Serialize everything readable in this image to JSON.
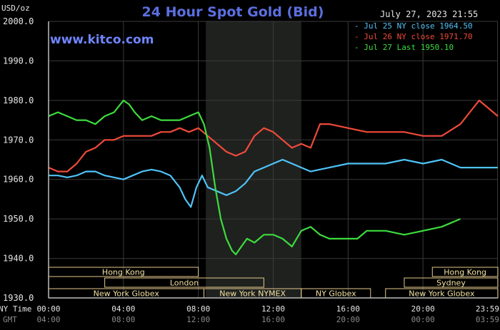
{
  "chart_data": {
    "type": "line",
    "title": "24 Hour Spot Gold (Bid)",
    "brand": "www.kitco.com",
    "timestamp": "July 27, 2023 21:55",
    "ylabel": "USD/oz",
    "ylim": [
      1930,
      2000
    ],
    "yticks": [
      "2000.0",
      "1990.0",
      "1980.0",
      "1970.0",
      "1960.0",
      "1950.0",
      "1940.0",
      "1930.0"
    ],
    "xlim": [
      0,
      24
    ],
    "xticks": [
      0,
      4,
      8,
      12,
      16,
      20,
      23.983
    ],
    "x_row1_label": "NY Time",
    "x_row1": [
      "00:00",
      "04:00",
      "08:00",
      "12:00",
      "16:00",
      "20:00",
      "23:59"
    ],
    "x_row2_label": "GMT",
    "x_row2": [
      "04:00",
      "08:00",
      "12:00",
      "16:00",
      "20:00",
      "00:00",
      "03:59"
    ],
    "shaded_range": [
      8.4,
      13.5
    ],
    "grid": true,
    "legend_position": "top-right",
    "series": [
      {
        "name": "Jul 25 NY close 1964.50",
        "color": "#4fc3f7",
        "x": [
          0,
          0.5,
          1,
          1.5,
          2,
          2.5,
          3,
          3.5,
          4,
          4.5,
          5,
          5.5,
          6,
          6.5,
          7,
          7.3,
          7.6,
          7.9,
          8.2,
          8.5,
          9,
          9.5,
          10,
          10.5,
          11,
          11.5,
          12,
          12.5,
          13,
          13.5,
          14,
          15,
          16,
          17,
          18,
          19,
          20,
          21,
          22,
          23,
          24
        ],
        "values": [
          1961,
          1961,
          1960.5,
          1961,
          1962,
          1962,
          1961,
          1960.5,
          1960,
          1961,
          1962,
          1962.5,
          1962,
          1961,
          1958,
          1955,
          1953,
          1958,
          1961,
          1958,
          1957,
          1956,
          1957,
          1959,
          1962,
          1963,
          1964,
          1965,
          1964,
          1963,
          1962,
          1963,
          1964,
          1964,
          1964,
          1965,
          1964,
          1965,
          1963,
          1963,
          1963
        ]
      },
      {
        "name": "Jul 26 NY close 1971.70",
        "color": "#f04a3a",
        "x": [
          0,
          0.5,
          1,
          1.5,
          2,
          2.5,
          3,
          3.5,
          4,
          4.5,
          5,
          5.5,
          6,
          6.5,
          7,
          7.5,
          8,
          8.5,
          9,
          9.5,
          10,
          10.5,
          11,
          11.5,
          12,
          12.5,
          13,
          13.5,
          14,
          14.5,
          15,
          16,
          17,
          18,
          19,
          20,
          21,
          22,
          22.5,
          23,
          23.5,
          24
        ],
        "values": [
          1963,
          1962,
          1962,
          1964,
          1967,
          1968,
          1970,
          1970,
          1971,
          1971,
          1971,
          1971,
          1972,
          1972,
          1973,
          1972,
          1973,
          1971,
          1969,
          1967,
          1966,
          1967,
          1971,
          1973,
          1972,
          1970,
          1968,
          1969,
          1968,
          1974,
          1974,
          1973,
          1972,
          1972,
          1972,
          1971,
          1971,
          1974,
          1977,
          1980,
          1978,
          1976
        ]
      },
      {
        "name": "Jul 27 Last 1950.10",
        "color": "#3ddc3d",
        "x": [
          0,
          0.5,
          1,
          1.5,
          2,
          2.5,
          3,
          3.5,
          4,
          4.3,
          4.6,
          5,
          5.5,
          6,
          6.5,
          7,
          7.5,
          8,
          8.3,
          8.6,
          8.9,
          9.2,
          9.5,
          9.8,
          10,
          10.3,
          10.6,
          11,
          11.5,
          12,
          12.5,
          13,
          13.5,
          14,
          14.5,
          15,
          15.5,
          16,
          16.5,
          17,
          18,
          19,
          20,
          21,
          22
        ],
        "values": [
          1976,
          1977,
          1976,
          1975,
          1975,
          1974,
          1976,
          1977,
          1980,
          1979,
          1977,
          1975,
          1976,
          1975,
          1975,
          1975,
          1976,
          1977,
          1974,
          1968,
          1958,
          1950,
          1945,
          1942,
          1941,
          1943,
          1945,
          1944,
          1946,
          1946,
          1945,
          1943,
          1947,
          1948,
          1946,
          1945,
          1945,
          1945,
          1945,
          1947,
          1947,
          1946,
          1947,
          1948,
          1950
        ]
      }
    ],
    "market_rows": [
      [
        {
          "label": "Hong Kong",
          "from": 0,
          "to": 8
        },
        {
          "label": "Hong Kong",
          "from": 20.5,
          "to": 24
        }
      ],
      [
        {
          "label": "London",
          "from": 3,
          "to": 11.5
        },
        {
          "label": "Sydney",
          "from": 19,
          "to": 24
        }
      ],
      [
        {
          "label": "New York Globex",
          "from": 0,
          "to": 8.3
        },
        {
          "label": "New York NYMEX",
          "from": 8.3,
          "to": 13.5
        },
        {
          "label": "NY Globex",
          "from": 13.5,
          "to": 17.2
        },
        {
          "label": "New York Globex",
          "from": 18,
          "to": 24
        }
      ]
    ]
  }
}
